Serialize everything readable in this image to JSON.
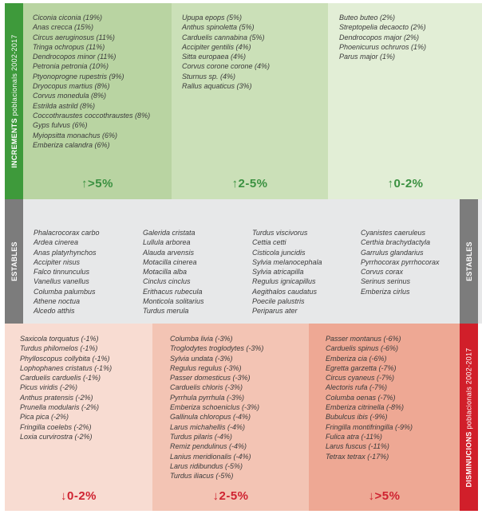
{
  "colors": {
    "green_bar": "#3e9a3b",
    "inc_1": "#b9d4a2",
    "inc_2": "#cbe0b8",
    "inc_3": "#e2eed6",
    "grey_bar": "#7c7c7c",
    "stable_bg": "#e7e8e9",
    "dec_1": "#f8dcd2",
    "dec_2": "#f3c4b4",
    "dec_3": "#eea894",
    "red_bar": "#d11f2a",
    "inc_text": "#3b9141",
    "dec_text": "#cf2331"
  },
  "increments": {
    "side_label_bold": "INCREMENTS",
    "side_label_rest": " poblacionals 2002-2017",
    "arrow": "↑",
    "columns": [
      {
        "title": ">5%",
        "species": [
          "Ciconia ciconia (19%)",
          "Anas crecca (15%)",
          "Circus aeruginosus (11%)",
          "Tringa ochropus (11%)",
          "Dendrocopos minor (11%)",
          "Petronia petronia (10%)",
          "Ptyonoprogne rupestris (9%)",
          "Dryocopus martius (8%)",
          "Corvus monedula (8%)",
          "Estrilda astrild (8%)",
          "Coccothraustes coccothraustes (8%)",
          "Gyps fulvus (6%)",
          "Myiopsitta monachus (6%)",
          "Emberiza calandra (6%)"
        ]
      },
      {
        "title": "2-5%",
        "species": [
          "Upupa epops (5%)",
          "Anthus spinoletta (5%)",
          "Carduelis cannabina (5%)",
          "Accipiter gentilis (4%)",
          "Sitta europaea (4%)",
          "Corvus corone corone (4%)",
          "Sturnus sp. (4%)",
          "Rallus aquaticus (3%)"
        ]
      },
      {
        "title": "0-2%",
        "species": [
          "Buteo buteo (2%)",
          "Streptopelia decaocto (2%)",
          "Dendrocopos major (2%)",
          "Phoenicurus ochruros (1%)",
          "Parus major (1%)"
        ]
      }
    ]
  },
  "estables": {
    "side_label": "ESTABLES",
    "columns": [
      [
        "Phalacrocorax carbo",
        "Ardea cinerea",
        "Anas platyrhynchos",
        "Accipiter nisus",
        "Falco tinnunculus",
        "Vanellus vanellus",
        "Columba palumbus",
        "Athene noctua",
        "Alcedo atthis"
      ],
      [
        "Galerida cristata",
        "Lullula arborea",
        "Alauda arvensis",
        "Motacilla cinerea",
        "Motacilla alba",
        "Cinclus cinclus",
        "Erithacus rubecula",
        "Monticola solitarius",
        "Turdus merula"
      ],
      [
        "Turdus viscivorus",
        "Cettia cetti",
        "Cisticola juncidis",
        "Sylvia melanocephala",
        "Sylvia atricapilla",
        "Regulus ignicapillus",
        "Aegithalos caudatus",
        "Poecile palustris",
        "Periparus ater"
      ],
      [
        "Cyanistes caeruleus",
        "Certhia brachydactyla",
        "Garrulus glandarius",
        "Pyrrhocorax pyrrhocorax",
        "Corvus corax",
        "Serinus serinus",
        "Emberiza cirlus"
      ]
    ]
  },
  "disminucions": {
    "side_label_bold": "DISMINUCIONS",
    "side_label_rest": " poblacionals 2002-2017",
    "arrow": "↓",
    "columns": [
      {
        "title": "0-2%",
        "species": [
          "Saxicola torquatus (-1%)",
          "Turdus philomelos (-1%)",
          "Phylloscopus collybita (-1%)",
          "Lophophanes cristatus (-1%)",
          "Carduelis carduelis (-1%)",
          "Picus viridis (-2%)",
          "Anthus pratensis (-2%)",
          "Prunella modularis (-2%)",
          "Pica pica (-2%)",
          "Fringilla coelebs (-2%)",
          "Loxia curvirostra (-2%)"
        ]
      },
      {
        "title": "2-5%",
        "species": [
          "Columba livia (-3%)",
          "Troglodytes troglodytes (-3%)",
          "Sylvia undata (-3%)",
          "Regulus regulus (-3%)",
          "Passer domesticus (-3%)",
          "Carduelis chloris (-3%)",
          "Pyrrhula pyrrhula (-3%)",
          "Emberiza schoeniclus (-3%)",
          "Gallinula chloropus (-4%)",
          "Larus michahellis (-4%)",
          "Turdus pilaris (-4%)",
          "Remiz pendulinus (-4%)",
          "Lanius meridionalis (-4%)",
          "Larus ridibundus (-5%)",
          "Turdus iliacus (-5%)"
        ]
      },
      {
        "title": ">5%",
        "species": [
          "Passer montanus (-6%)",
          "Carduelis spinus (-6%)",
          "Emberiza cia (-6%)",
          "Egretta garzetta (-7%)",
          "Circus cyaneus (-7%)",
          "Alectoris rufa (-7%)",
          "Columba oenas (-7%)",
          "Emberiza citrinella (-8%)",
          "Bubulcus ibis (-9%)",
          "Fringilla montifringilla (-9%)",
          "Fulica atra (-11%)",
          "Larus fuscus (-11%)",
          "Tetrax tetrax (-17%)"
        ]
      }
    ]
  }
}
